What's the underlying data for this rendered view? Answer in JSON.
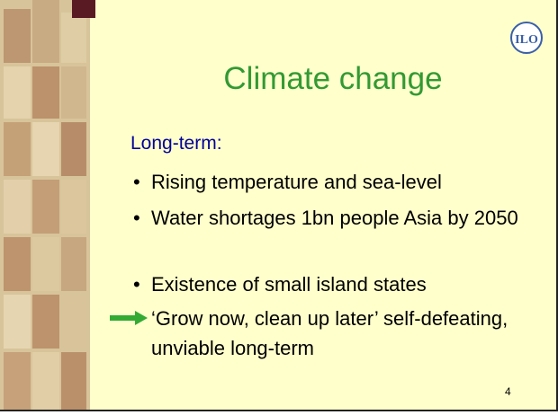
{
  "slide": {
    "logo": "ILO",
    "title": "Climate change",
    "subtitle": "Long-term:",
    "bullets": [
      "Rising temperature and sea-level",
      "Water shortages 1bn people Asia by 2050",
      "Existence of small island states"
    ],
    "arrow_item": "‘Grow now, clean up later’ self-defeating, unviable long-term",
    "page_number": "4"
  }
}
